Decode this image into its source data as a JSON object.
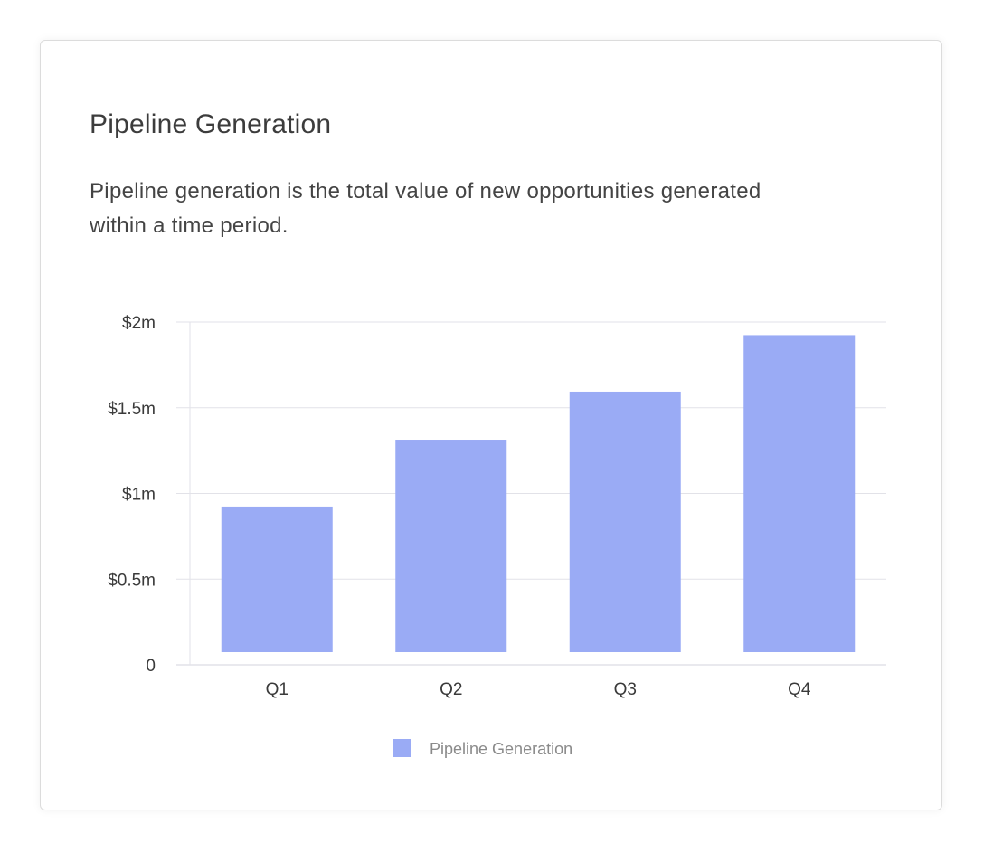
{
  "card": {
    "title": "Pipeline Generation",
    "description": "Pipeline generation is the total value of new opportunities generated within a time period."
  },
  "chart_data": {
    "type": "bar",
    "categories": [
      "Q1",
      "Q2",
      "Q3",
      "Q4"
    ],
    "series": [
      {
        "name": "Pipeline Generation",
        "values": [
          850000,
          1240000,
          1520000,
          1850000
        ]
      }
    ],
    "y_ticks": [
      0,
      500000,
      1000000,
      1500000,
      2000000
    ],
    "y_tick_labels": [
      "0",
      "$0.5m",
      "$1m",
      "$1.5m",
      "$2m"
    ],
    "ylim": [
      0,
      2000000
    ],
    "grid": true,
    "legend_position": "bottom-center",
    "bar_color": "#9aabf5",
    "grid_color": "#e2e2e8"
  }
}
